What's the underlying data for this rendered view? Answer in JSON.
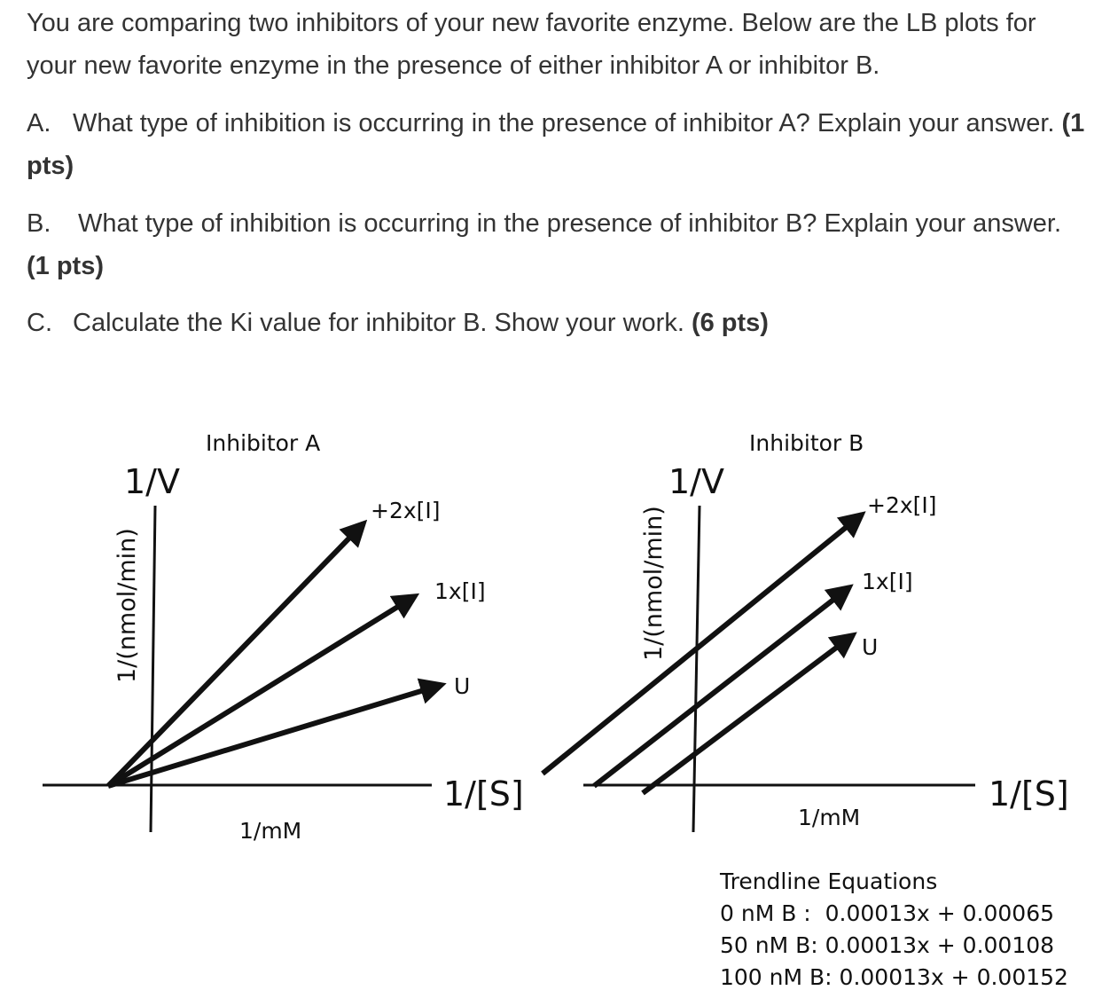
{
  "intro": {
    "text": "You are comparing two inhibitors of your new favorite enzyme. Below are the LB plots for your new favorite enzyme in the presence of either inhibitor A or inhibitor B."
  },
  "questions": [
    {
      "letter": "A.",
      "text": "What type of inhibition is occurring in the presence of inhibitor A? Explain your answer.",
      "points": "(1 pts)"
    },
    {
      "letter": "B.",
      "text": "What type of inhibition is occurring in the presence of inhibitor B? Explain your answer.",
      "points": "(1 pts)"
    },
    {
      "letter": "C.",
      "text": "Calculate the Ki value for inhibitor B. Show your work.",
      "points": "(6 pts)"
    }
  ],
  "plot_a": {
    "title": "Inhibitor A",
    "y_axis_symbol": "1/V",
    "y_axis_unit": "1/(nmol/min)",
    "x_axis_symbol": "1/[S]",
    "x_axis_unit": "1/mM",
    "lines": [
      {
        "label": "+2x[I]"
      },
      {
        "label": "1x[I]"
      },
      {
        "label": "U"
      }
    ]
  },
  "plot_b": {
    "title": "Inhibitor B",
    "y_axis_symbol": "1/V",
    "y_axis_unit": "1/(nmol/min)",
    "x_axis_symbol": "1/[S]",
    "x_axis_unit": "1/mM",
    "lines": [
      {
        "label": "+2x[I]"
      },
      {
        "label": "1x[I]"
      },
      {
        "label": "U"
      }
    ]
  },
  "trendlines": {
    "heading": "Trendline Equations",
    "equations": [
      "0 nM B :  0.00013x + 0.00065",
      "50 nM B: 0.00013x + 0.00108",
      "100 nM B: 0.00013x + 0.00152"
    ]
  },
  "colors": {
    "text": "#333333",
    "ink": "#111111",
    "background": "#ffffff"
  }
}
